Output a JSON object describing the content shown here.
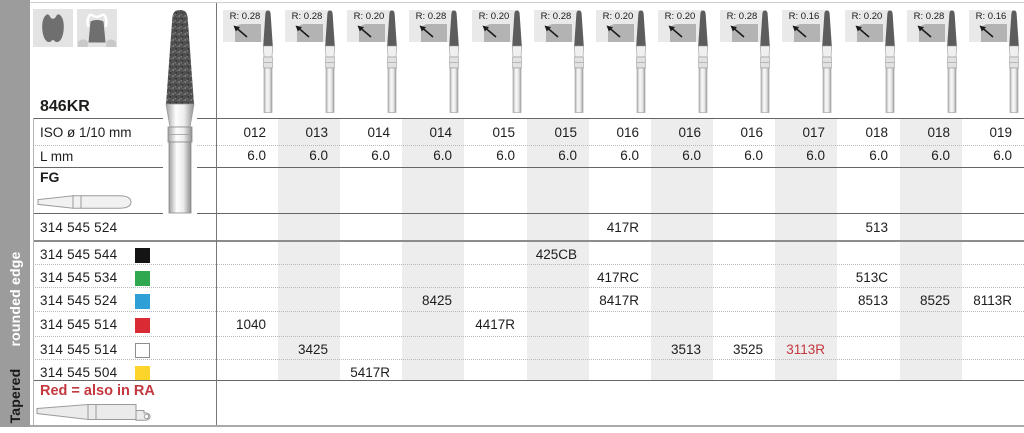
{
  "sidebar": {
    "label_top": "rounded edge",
    "label_bottom": "Tapered"
  },
  "header": {
    "product_code": "846KR",
    "iso_row_label": "ISO ø 1/10 mm",
    "length_row_label": "L mm",
    "shank_row_label": "FG",
    "indication_icons": [
      "molar-occlusal-reduction",
      "crown-preparation"
    ]
  },
  "columns": [
    {
      "radius": "R: 0.28",
      "iso": "012",
      "length": "6.0"
    },
    {
      "radius": "R: 0.28",
      "iso": "013",
      "length": "6.0"
    },
    {
      "radius": "R: 0.20",
      "iso": "014",
      "length": "6.0"
    },
    {
      "radius": "R: 0.28",
      "iso": "014",
      "length": "6.0"
    },
    {
      "radius": "R: 0.20",
      "iso": "015",
      "length": "6.0"
    },
    {
      "radius": "R: 0.28",
      "iso": "015",
      "length": "6.0"
    },
    {
      "radius": "R: 0.20",
      "iso": "016",
      "length": "6.0"
    },
    {
      "radius": "R: 0.20",
      "iso": "016",
      "length": "6.0"
    },
    {
      "radius": "R: 0.28",
      "iso": "016",
      "length": "6.0"
    },
    {
      "radius": "R: 0.16",
      "iso": "017",
      "length": "6.0"
    },
    {
      "radius": "R: 0.20",
      "iso": "018",
      "length": "6.0"
    },
    {
      "radius": "R: 0.28",
      "iso": "018",
      "length": "6.0"
    },
    {
      "radius": "R: 0.16",
      "iso": "019",
      "length": "6.0"
    }
  ],
  "rows": [
    {
      "code": "314 545 524",
      "swatch": null,
      "cells": [
        "",
        "",
        "",
        "",
        "",
        "",
        "417R",
        "",
        "",
        "",
        "513",
        "",
        ""
      ]
    },
    {
      "code": "314 545 544",
      "swatch": {
        "fill": "#141414",
        "border": "#141414"
      },
      "cells": [
        "",
        "",
        "",
        "",
        "",
        "425CB",
        "",
        "",
        "",
        "",
        "",
        "",
        ""
      ]
    },
    {
      "code": "314 545 534",
      "swatch": {
        "fill": "#2fa84f",
        "border": "#2fa84f"
      },
      "cells": [
        "",
        "",
        "",
        "",
        "",
        "",
        "417RC",
        "",
        "",
        "",
        "513C",
        "",
        ""
      ]
    },
    {
      "code": "314 545 524",
      "swatch": {
        "fill": "#2f9fd8",
        "border": "#2f9fd8"
      },
      "cells": [
        "",
        "",
        "",
        "8425",
        "",
        "",
        "8417R",
        "",
        "",
        "",
        "8513",
        "8525",
        "8113R"
      ]
    },
    {
      "code": "314 545 514",
      "swatch": {
        "fill": "#da2a33",
        "border": "#da2a33"
      },
      "cells": [
        "1040",
        "",
        "",
        "",
        "4417R",
        "",
        "",
        "",
        "",
        "",
        "",
        "",
        ""
      ]
    },
    {
      "code": "314 545 514",
      "swatch": {
        "fill": "#ffffff",
        "border": "#8e8e8e"
      },
      "cells": [
        "",
        "3425",
        "",
        "",
        "",
        "",
        "",
        "3513",
        "3525",
        "3113R",
        "",
        "",
        ""
      ],
      "red_cells": [
        "3113R"
      ]
    },
    {
      "code": "314 545 504",
      "swatch": {
        "fill": "#fcd42a",
        "border": "#fcd42a"
      },
      "cells": [
        "",
        "",
        "5417R",
        "",
        "",
        "",
        "",
        "",
        "",
        "",
        "",
        "",
        ""
      ]
    }
  ],
  "footer": {
    "note": "Red = also in RA"
  },
  "colors": {
    "sidebar": "#9c9c9c",
    "column_band": "#ededed",
    "badge_background": "#e9e9e9",
    "red_accent": "#c4383f",
    "swatch_black": "#141414",
    "swatch_green": "#2fa84f",
    "swatch_blue": "#2f9fd8",
    "swatch_red": "#da2a33",
    "swatch_white": "#ffffff",
    "swatch_yellow": "#fcd42a"
  }
}
